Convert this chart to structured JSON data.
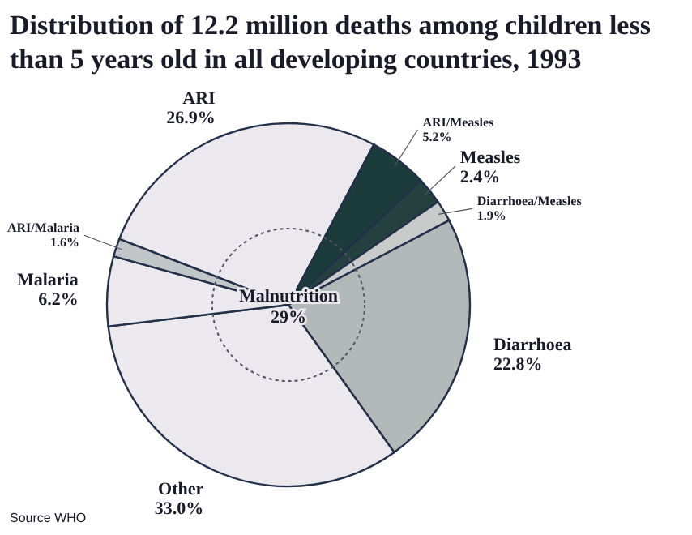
{
  "chart_data": {
    "type": "pie",
    "title": "Distribution of 12.2 million deaths among children less than 5 years old in all developing countries, 1993",
    "categories": [
      "ARI",
      "ARI/Measles",
      "Measles",
      "Diarrhoea/Measles",
      "Diarrhoea",
      "Other",
      "Malaria",
      "ARI/Malaria"
    ],
    "values": [
      26.9,
      5.2,
      2.4,
      1.9,
      22.8,
      33.0,
      6.2,
      1.6
    ],
    "value_labels": [
      "26.9%",
      "5.2%",
      "2.4%",
      "1.9%",
      "22.8%",
      "33.0%",
      "6.2%",
      "1.6%"
    ],
    "colors": [
      "#ebe8ee",
      "#1c3b3b",
      "#24403f",
      "#c9cbcb",
      "#b3b8b8",
      "#ebe8ee",
      "#ebe8ee",
      "#c3c6c8"
    ],
    "annotations": [
      "Malnutrition 29%",
      "Source WHO"
    ]
  }
}
